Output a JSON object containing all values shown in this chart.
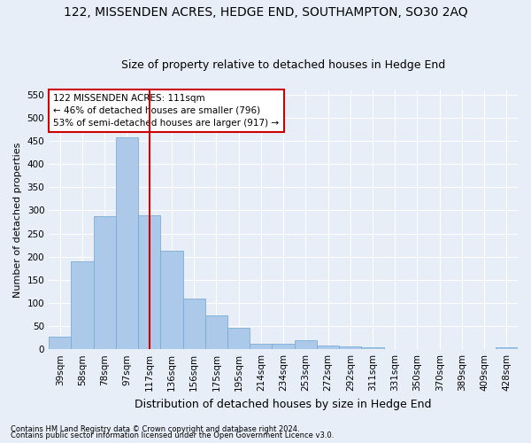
{
  "title1": "122, MISSENDEN ACRES, HEDGE END, SOUTHAMPTON, SO30 2AQ",
  "title2": "Size of property relative to detached houses in Hedge End",
  "xlabel": "Distribution of detached houses by size in Hedge End",
  "ylabel": "Number of detached properties",
  "categories": [
    "39sqm",
    "58sqm",
    "78sqm",
    "97sqm",
    "117sqm",
    "136sqm",
    "156sqm",
    "175sqm",
    "195sqm",
    "214sqm",
    "234sqm",
    "253sqm",
    "272sqm",
    "292sqm",
    "311sqm",
    "331sqm",
    "350sqm",
    "370sqm",
    "389sqm",
    "409sqm",
    "428sqm"
  ],
  "values": [
    28,
    190,
    287,
    458,
    290,
    213,
    109,
    73,
    46,
    12,
    12,
    20,
    8,
    6,
    5,
    0,
    0,
    0,
    0,
    0,
    5
  ],
  "bar_color": "#adc9e9",
  "bar_edge_color": "#7aadd4",
  "vline_x_index": 4,
  "vline_color": "#cc0000",
  "annotation_line1": "122 MISSENDEN ACRES: 111sqm",
  "annotation_line2": "← 46% of detached houses are smaller (796)",
  "annotation_line3": "53% of semi-detached houses are larger (917) →",
  "annotation_box_color": "#ffffff",
  "annotation_box_edge_color": "#cc0000",
  "ylim": [
    0,
    560
  ],
  "yticks": [
    0,
    50,
    100,
    150,
    200,
    250,
    300,
    350,
    400,
    450,
    500,
    550
  ],
  "footer1": "Contains HM Land Registry data © Crown copyright and database right 2024.",
  "footer2": "Contains public sector information licensed under the Open Government Licence v3.0.",
  "bg_color": "#e8eef8",
  "grid_color": "#ffffff",
  "title1_fontsize": 10,
  "title2_fontsize": 9,
  "xlabel_fontsize": 9,
  "ylabel_fontsize": 8,
  "tick_fontsize": 7.5,
  "annotation_fontsize": 7.5,
  "footer_fontsize": 6
}
